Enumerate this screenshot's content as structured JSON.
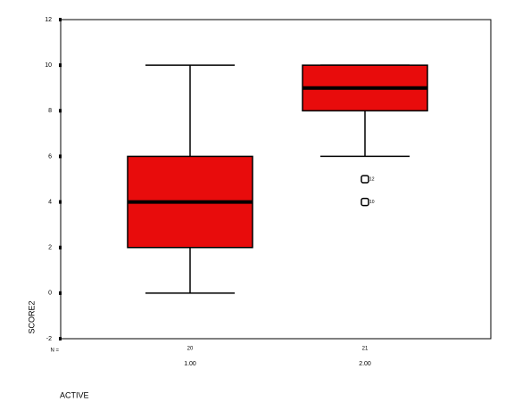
{
  "chart_data": {
    "type": "box",
    "x_label": "ACTIVE",
    "y_label": "SCORE2",
    "n_prefix": "N =",
    "categories": [
      "1.00",
      "2.00"
    ],
    "n_values": [
      20,
      21
    ],
    "color": "#e80c0c",
    "boxes": [
      {
        "whisker_low": 0,
        "q1": 2,
        "median": 4,
        "q3": 6,
        "whisker_high": 10,
        "outliers": []
      },
      {
        "whisker_low": 6,
        "q1": 8,
        "median": 9,
        "q3": 10,
        "whisker_high": 10,
        "outliers": [
          {
            "value": 5,
            "label": "12"
          },
          {
            "value": 4,
            "label": "10"
          }
        ]
      }
    ],
    "ylim": [
      -2,
      12
    ],
    "yticks": [
      -2,
      0,
      2,
      4,
      6,
      8,
      10,
      12
    ]
  }
}
